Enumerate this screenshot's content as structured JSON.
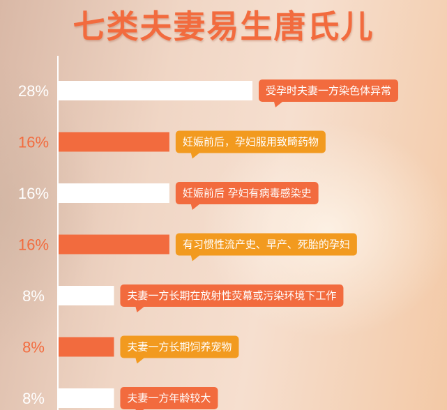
{
  "title": "七类夫妻易生唐氏儿",
  "colors": {
    "bar_white": "#ffffff",
    "bar_orange": "#f26b3e",
    "pct_white": "#ffffff",
    "pct_orange": "#f26b3e",
    "callout_orange": "#f26b3e",
    "callout_amber": "#f29a1f",
    "axis": "#ffffff"
  },
  "chart_data": {
    "type": "bar",
    "orientation": "horizontal",
    "xlim": [
      0,
      28
    ],
    "grid": false,
    "legend": "none",
    "title": "七类夫妻易生唐氏儿",
    "bars": [
      {
        "value": 28,
        "value_label": "28%",
        "label": "受孕时夫妻一方染色体异常",
        "bar_color": "white",
        "callout_color": "orange"
      },
      {
        "value": 16,
        "value_label": "16%",
        "label": "妊娠前后，孕妇服用致畸药物",
        "bar_color": "orange",
        "callout_color": "amber"
      },
      {
        "value": 16,
        "value_label": "16%",
        "label": "妊娠前后  孕妇有病毒感染史",
        "bar_color": "white",
        "callout_color": "orange"
      },
      {
        "value": 16,
        "value_label": "16%",
        "label": "有习惯性流产史、早产、死胎的孕妇",
        "bar_color": "orange",
        "callout_color": "amber"
      },
      {
        "value": 8,
        "value_label": "8%",
        "label": "夫妻一方长期在放射性荧幕或污染环境下工作",
        "bar_color": "white",
        "callout_color": "orange"
      },
      {
        "value": 8,
        "value_label": "8%",
        "label": "夫妻一方长期饲养宠物",
        "bar_color": "orange",
        "callout_color": "amber"
      },
      {
        "value": 8,
        "value_label": "8%",
        "label": "夫妻一方年龄较大",
        "bar_color": "white",
        "callout_color": "orange"
      }
    ]
  }
}
